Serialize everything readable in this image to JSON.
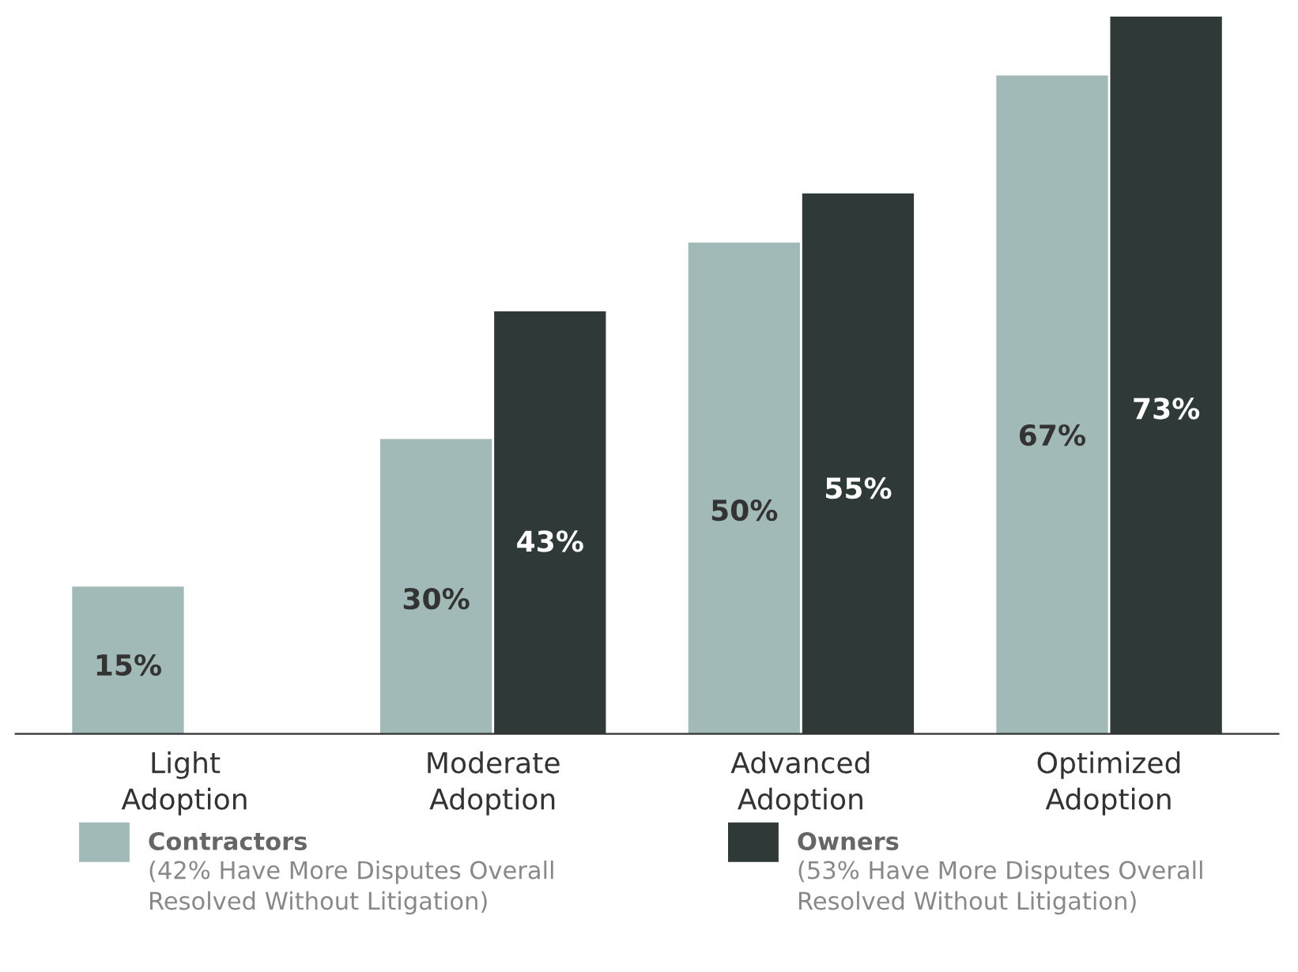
{
  "chart_data": {
    "type": "bar",
    "categories": [
      "Light Adoption",
      "Moderate Adoption",
      "Advanced Adoption",
      "Optimized Adoption"
    ],
    "series": [
      {
        "name": "Contractors",
        "color": "#a1bab7",
        "values": [
          15,
          30,
          50,
          67
        ],
        "value_labels": [
          "15%",
          "30%",
          "50%",
          "67%"
        ]
      },
      {
        "name": "Owners",
        "color": "#2f3a38",
        "values": [
          null,
          43,
          55,
          73
        ],
        "value_labels": [
          null,
          "43%",
          "55%",
          "73%"
        ]
      }
    ],
    "legend": "bottom",
    "grid": false,
    "annotations": [
      "(42% Have More Disputes Overall\nResolved Without Litigation)",
      "(53% Have More Disputes Overall\nResolved Without Litigation)"
    ]
  }
}
